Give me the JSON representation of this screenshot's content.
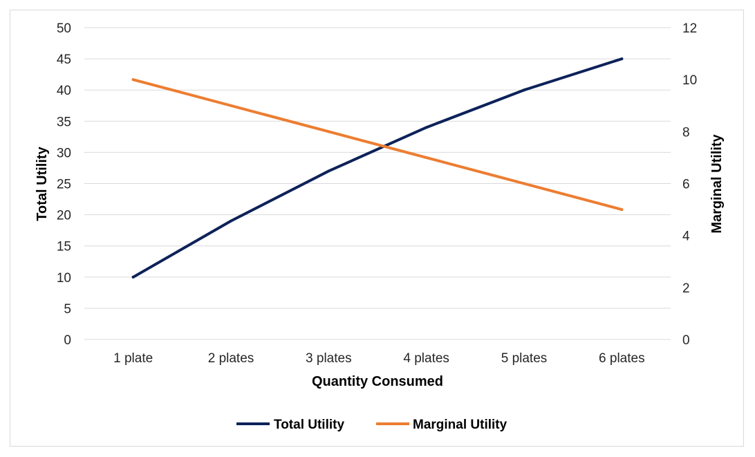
{
  "chart_data": {
    "type": "line",
    "categories": [
      "1 plate",
      "2 plates",
      "3 plates",
      "4 plates",
      "5 plates",
      "6 plates"
    ],
    "series": [
      {
        "name": "Total Utility",
        "axis": "left",
        "color": "#0d2259",
        "values": [
          10,
          19,
          27,
          34,
          40,
          45
        ]
      },
      {
        "name": "Marginal Utility",
        "axis": "right",
        "color": "#ed7d31",
        "values": [
          10,
          9,
          8,
          7,
          6,
          5
        ]
      }
    ],
    "xlabel": "Quantity Consumed",
    "ylabel": "Total Utility",
    "y2label": "Marginal Utility",
    "ylim": [
      0,
      50
    ],
    "yticks": [
      "0",
      "5",
      "10",
      "15",
      "20",
      "25",
      "30",
      "35",
      "40",
      "45",
      "50"
    ],
    "y2lim": [
      0,
      12
    ],
    "y2ticks": [
      "0",
      "2",
      "4",
      "6",
      "8",
      "10",
      "12"
    ],
    "grid": true,
    "legend_position": "bottom"
  }
}
